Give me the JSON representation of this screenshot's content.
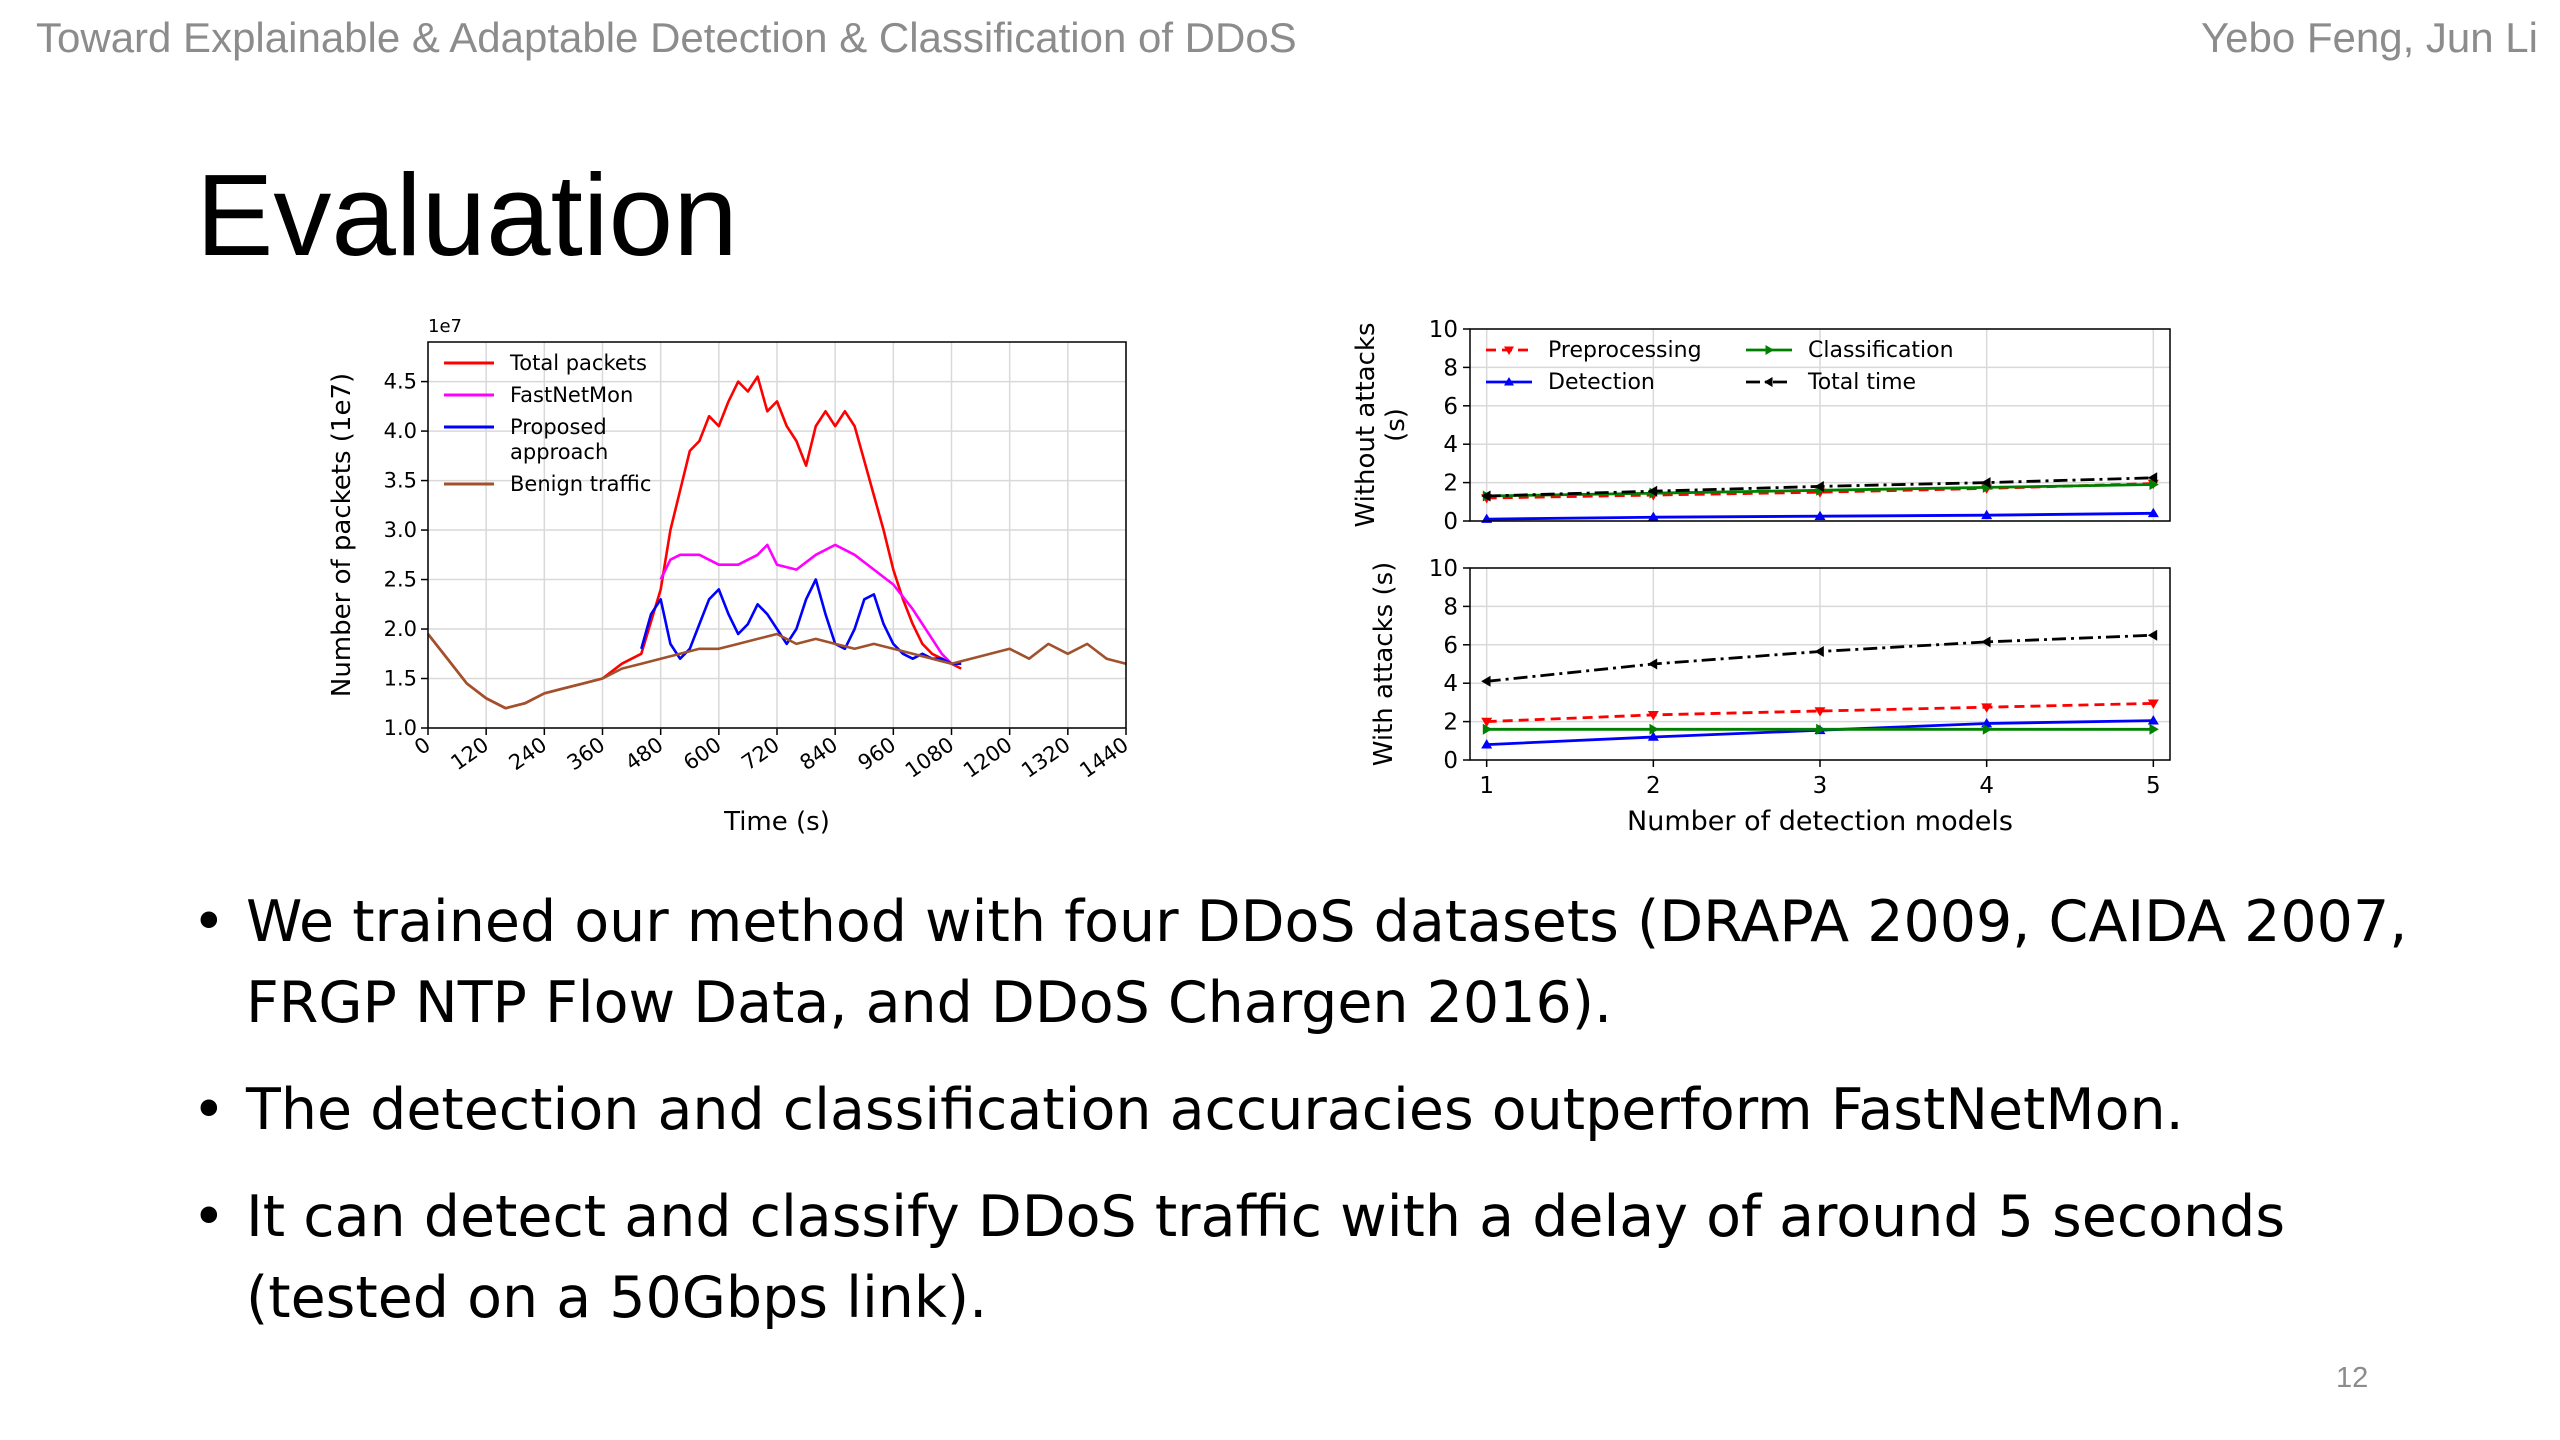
{
  "header": {
    "left": "Toward Explainable & Adaptable Detection & Classification of DDoS",
    "right": "Yebo Feng, Jun Li"
  },
  "slide": {
    "title": "Evaluation",
    "page_number": "12"
  },
  "bullets": [
    {
      "marker": "•",
      "text": "We trained our method with four DDoS datasets (DRAPA 2009, CAIDA 2007, FRGP NTP Flow Data, and DDoS Chargen 2016)."
    },
    {
      "marker": "•",
      "text": "The detection and classification accuracies outperform FastNetMon."
    },
    {
      "marker": "•",
      "text": "It can detect and classify DDoS traffic with a delay of around 5 seconds (tested on a 50Gbps link)."
    }
  ],
  "chart_data": [
    {
      "type": "line",
      "xlabel": "Time (s)",
      "ylabel": "Number of packets (1e7)",
      "offset_text": "1e7",
      "xlim": [
        0,
        1440
      ],
      "ylim": [
        1.0,
        4.9
      ],
      "x_ticks": [
        "0",
        "120",
        "240",
        "360",
        "480",
        "600",
        "720",
        "840",
        "960",
        "1080",
        "1200",
        "1320",
        "1440"
      ],
      "y_ticks": [
        "1.0",
        "1.5",
        "2.0",
        "2.5",
        "3.0",
        "3.5",
        "4.0",
        "4.5"
      ],
      "grid": true,
      "legend_position": "upper-left",
      "legend": [
        {
          "lines": [
            "Total packets"
          ],
          "color": "#ff0000"
        },
        {
          "lines": [
            "FastNetMon"
          ],
          "color": "#ff00ff"
        },
        {
          "lines": [
            "Proposed",
            "approach"
          ],
          "color": "#0000ff"
        },
        {
          "lines": [
            "Benign traffic"
          ],
          "color": "#a0522d"
        }
      ],
      "series": [
        {
          "name": "Total packets",
          "color": "#ff0000",
          "x": [
            0,
            40,
            80,
            120,
            160,
            200,
            240,
            280,
            320,
            360,
            400,
            440,
            480,
            500,
            520,
            540,
            560,
            580,
            600,
            620,
            640,
            660,
            680,
            700,
            720,
            740,
            760,
            780,
            800,
            820,
            840,
            860,
            880,
            900,
            920,
            940,
            960,
            980,
            1000,
            1020,
            1040,
            1060,
            1080,
            1100
          ],
          "y": [
            1.95,
            1.7,
            1.45,
            1.3,
            1.2,
            1.25,
            1.35,
            1.4,
            1.45,
            1.5,
            1.65,
            1.75,
            2.4,
            3.0,
            3.4,
            3.8,
            3.9,
            4.15,
            4.05,
            4.3,
            4.5,
            4.4,
            4.55,
            4.2,
            4.3,
            4.05,
            3.9,
            3.65,
            4.05,
            4.2,
            4.05,
            4.2,
            4.05,
            3.7,
            3.35,
            3.0,
            2.6,
            2.3,
            2.05,
            1.85,
            1.75,
            1.7,
            1.65,
            1.6
          ]
        },
        {
          "name": "FastNetMon",
          "color": "#ff00ff",
          "x": [
            480,
            500,
            520,
            560,
            600,
            640,
            680,
            700,
            720,
            760,
            800,
            840,
            880,
            920,
            960,
            1000,
            1040,
            1060,
            1080
          ],
          "y": [
            2.5,
            2.7,
            2.75,
            2.75,
            2.65,
            2.65,
            2.75,
            2.85,
            2.65,
            2.6,
            2.75,
            2.85,
            2.75,
            2.6,
            2.45,
            2.2,
            1.9,
            1.75,
            1.65
          ]
        },
        {
          "name": "Proposed approach",
          "color": "#0000ff",
          "x": [
            440,
            460,
            480,
            500,
            520,
            540,
            560,
            580,
            600,
            620,
            640,
            660,
            680,
            700,
            720,
            740,
            760,
            780,
            800,
            820,
            840,
            860,
            880,
            900,
            920,
            940,
            960,
            980,
            1000,
            1020,
            1040,
            1060,
            1080,
            1100
          ],
          "y": [
            1.8,
            2.15,
            2.3,
            1.85,
            1.7,
            1.8,
            2.05,
            2.3,
            2.4,
            2.15,
            1.95,
            2.05,
            2.25,
            2.15,
            2.0,
            1.85,
            2.0,
            2.3,
            2.5,
            2.15,
            1.85,
            1.8,
            2.0,
            2.3,
            2.35,
            2.05,
            1.85,
            1.75,
            1.7,
            1.75,
            1.7,
            1.7,
            1.65,
            1.65
          ]
        },
        {
          "name": "Benign traffic",
          "color": "#a0522d",
          "x": [
            0,
            40,
            80,
            120,
            160,
            200,
            240,
            280,
            320,
            360,
            400,
            440,
            480,
            520,
            560,
            600,
            640,
            680,
            720,
            760,
            800,
            840,
            880,
            920,
            960,
            1000,
            1040,
            1080,
            1120,
            1160,
            1200,
            1240,
            1280,
            1320,
            1360,
            1400,
            1440
          ],
          "y": [
            1.95,
            1.7,
            1.45,
            1.3,
            1.2,
            1.25,
            1.35,
            1.4,
            1.45,
            1.5,
            1.6,
            1.65,
            1.7,
            1.75,
            1.8,
            1.8,
            1.85,
            1.9,
            1.95,
            1.85,
            1.9,
            1.85,
            1.8,
            1.85,
            1.8,
            1.75,
            1.7,
            1.65,
            1.7,
            1.75,
            1.8,
            1.7,
            1.85,
            1.75,
            1.85,
            1.7,
            1.65
          ]
        }
      ]
    },
    {
      "type": "line",
      "panel": "top",
      "xlim": [
        0.9,
        5.1
      ],
      "ylim": [
        0,
        10
      ],
      "y_ticks": [
        "0",
        "2",
        "4",
        "6",
        "8",
        "10"
      ],
      "ylabel_lines": [
        "Without attacks",
        "(s)"
      ],
      "grid": true,
      "legend_position": "upper-left",
      "x": [
        1,
        2,
        3,
        4,
        5
      ],
      "series": [
        {
          "name": "Preprocessing",
          "color": "#ff0000",
          "dash": "10,6",
          "marker": "tri_down",
          "values": [
            1.2,
            1.35,
            1.5,
            1.7,
            1.95
          ]
        },
        {
          "name": "Detection",
          "color": "#0000ff",
          "dash": "",
          "marker": "tri_up",
          "values": [
            0.1,
            0.2,
            0.25,
            0.3,
            0.4
          ]
        },
        {
          "name": "Classification",
          "color": "#008000",
          "dash": "",
          "marker": "tri_right",
          "values": [
            1.3,
            1.45,
            1.6,
            1.75,
            1.9
          ]
        },
        {
          "name": "Total time",
          "color": "#000000",
          "dash": "14,5,3,5",
          "marker": "tri_left",
          "values": [
            1.3,
            1.55,
            1.8,
            2.0,
            2.25
          ]
        }
      ]
    },
    {
      "type": "line",
      "panel": "bottom",
      "xlim": [
        0.9,
        5.1
      ],
      "ylim": [
        0,
        10
      ],
      "y_ticks": [
        "0",
        "2",
        "4",
        "6",
        "8",
        "10"
      ],
      "x_ticks": [
        "1",
        "2",
        "3",
        "4",
        "5"
      ],
      "xlabel": "Number of detection models",
      "ylabel": "With attacks (s)",
      "grid": true,
      "x": [
        1,
        2,
        3,
        4,
        5
      ],
      "series": [
        {
          "name": "Preprocessing",
          "color": "#ff0000",
          "dash": "10,6",
          "marker": "tri_down",
          "values": [
            2.0,
            2.35,
            2.55,
            2.75,
            2.95
          ]
        },
        {
          "name": "Detection",
          "color": "#0000ff",
          "dash": "",
          "marker": "tri_up",
          "values": [
            0.8,
            1.2,
            1.55,
            1.9,
            2.05
          ]
        },
        {
          "name": "Classification",
          "color": "#008000",
          "dash": "",
          "marker": "tri_right",
          "values": [
            1.6,
            1.6,
            1.6,
            1.6,
            1.6
          ]
        },
        {
          "name": "Total time",
          "color": "#000000",
          "dash": "14,5,3,5",
          "marker": "tri_left",
          "values": [
            4.1,
            5.0,
            5.65,
            6.15,
            6.5
          ]
        }
      ]
    }
  ]
}
